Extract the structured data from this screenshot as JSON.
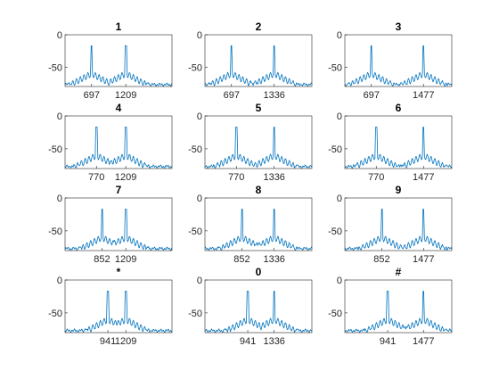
{
  "chart_data": [
    {
      "type": "line",
      "title": "1",
      "xticks": [
        "697",
        "1209"
      ],
      "yticks": [
        "0",
        "-50"
      ],
      "ylim": [
        -80,
        0
      ],
      "peaks": [
        697,
        1209
      ],
      "peak_db": [
        -17,
        -17
      ],
      "grid": false
    },
    {
      "type": "line",
      "title": "2",
      "xticks": [
        "697",
        "1336"
      ],
      "yticks": [
        "0",
        "-50"
      ],
      "ylim": [
        -80,
        0
      ],
      "peaks": [
        697,
        1336
      ],
      "peak_db": [
        -17,
        -17
      ],
      "grid": false
    },
    {
      "type": "line",
      "title": "3",
      "xticks": [
        "697",
        "1477"
      ],
      "yticks": [
        "0",
        "-50"
      ],
      "ylim": [
        -80,
        0
      ],
      "peaks": [
        697,
        1477
      ],
      "peak_db": [
        -17,
        -17
      ],
      "grid": false
    },
    {
      "type": "line",
      "title": "4",
      "xticks": [
        "770",
        "1209"
      ],
      "yticks": [
        "0",
        "-50"
      ],
      "ylim": [
        -80,
        0
      ],
      "peaks": [
        770,
        1209
      ],
      "peak_db": [
        -17,
        -17
      ],
      "grid": false
    },
    {
      "type": "line",
      "title": "5",
      "xticks": [
        "770",
        "1336"
      ],
      "yticks": [
        "0",
        "-50"
      ],
      "ylim": [
        -80,
        0
      ],
      "peaks": [
        770,
        1336
      ],
      "peak_db": [
        -17,
        -17
      ],
      "grid": false
    },
    {
      "type": "line",
      "title": "6",
      "xticks": [
        "770",
        "1477"
      ],
      "yticks": [
        "0",
        "-50"
      ],
      "ylim": [
        -80,
        0
      ],
      "peaks": [
        770,
        1477
      ],
      "peak_db": [
        -17,
        -17
      ],
      "grid": false
    },
    {
      "type": "line",
      "title": "7",
      "xticks": [
        "852",
        "1209"
      ],
      "yticks": [
        "0",
        "-50"
      ],
      "ylim": [
        -80,
        0
      ],
      "peaks": [
        852,
        1209
      ],
      "peak_db": [
        -17,
        -17
      ],
      "grid": false
    },
    {
      "type": "line",
      "title": "8",
      "xticks": [
        "852",
        "1336"
      ],
      "yticks": [
        "0",
        "-50"
      ],
      "ylim": [
        -80,
        0
      ],
      "peaks": [
        852,
        1336
      ],
      "peak_db": [
        -17,
        -17
      ],
      "grid": false
    },
    {
      "type": "line",
      "title": "9",
      "xticks": [
        "852",
        "1477"
      ],
      "yticks": [
        "0",
        "-50"
      ],
      "ylim": [
        -80,
        0
      ],
      "peaks": [
        852,
        1477
      ],
      "peak_db": [
        -17,
        -17
      ],
      "grid": false
    },
    {
      "type": "line",
      "title": "*",
      "xticks": [
        "941",
        "1209"
      ],
      "yticks": [
        "0",
        "-50"
      ],
      "ylim": [
        -80,
        0
      ],
      "peaks": [
        941,
        1209
      ],
      "peak_db": [
        -17,
        -17
      ],
      "grid": false
    },
    {
      "type": "line",
      "title": "0",
      "xticks": [
        "941",
        "1336"
      ],
      "yticks": [
        "0",
        "-50"
      ],
      "ylim": [
        -80,
        0
      ],
      "peaks": [
        941,
        1336
      ],
      "peak_db": [
        -17,
        -17
      ],
      "grid": false
    },
    {
      "type": "line",
      "title": "#",
      "xticks": [
        "941",
        "1477"
      ],
      "yticks": [
        "0",
        "-50"
      ],
      "ylim": [
        -80,
        0
      ],
      "peaks": [
        941,
        1477
      ],
      "peak_db": [
        -17,
        -17
      ],
      "grid": false
    }
  ],
  "colors": {
    "trace": "#0072bd",
    "axis": "#262626",
    "background": "#ffffff"
  }
}
